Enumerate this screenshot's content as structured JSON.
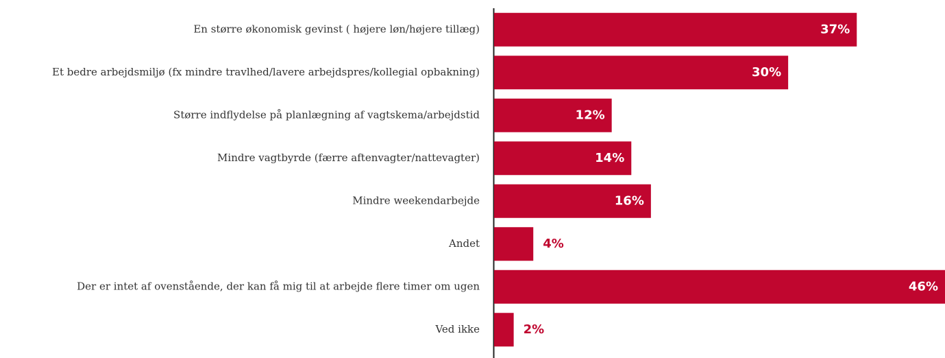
{
  "chart_data": {
    "type": "bar",
    "orientation": "horizontal",
    "categories": [
      "En større økonomisk gevinst ( højere løn/højere tillæg)",
      "Et bedre arbejdsmiljø (fx mindre travlhed/lavere arbejdspres/kollegial opbakning)",
      "Større indflydelse på planlægning af vagtskema/arbejdstid",
      "Mindre vagtbyrde (færre aftenvagter/nattevagter)",
      "Mindre weekendarbejde",
      "Andet",
      "Der er intet af ovenstående, der kan få mig til at arbejde flere timer om ugen",
      "Ved ikke"
    ],
    "values": [
      37,
      30,
      12,
      14,
      16,
      4,
      46,
      2
    ],
    "value_labels": [
      "37%",
      "30%",
      "12%",
      "14%",
      "16%",
      "4%",
      "46%",
      "2%"
    ],
    "color": "#c0062f",
    "xlim": [
      0,
      46
    ]
  }
}
